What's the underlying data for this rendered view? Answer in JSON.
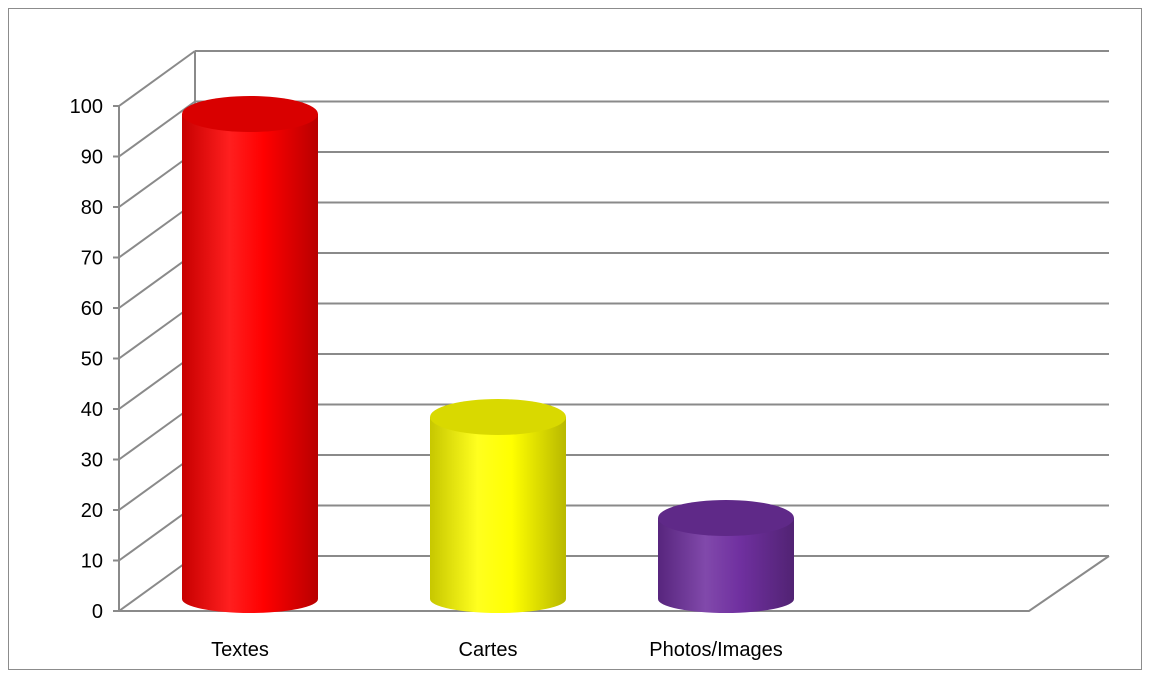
{
  "chart_data": {
    "type": "bar",
    "style": "3d-cylinder",
    "categories": [
      "Textes",
      "Cartes",
      "Photos/Images"
    ],
    "values": [
      100,
      40,
      20
    ],
    "colors": [
      "#ff0000",
      "#ffff00",
      "#7030a0"
    ],
    "ylim": [
      0,
      100
    ],
    "yticks": [
      "0",
      "10",
      "20",
      "30",
      "40",
      "50",
      "60",
      "70",
      "80",
      "90",
      "100"
    ],
    "grid": true,
    "title": "",
    "xlabel": "",
    "ylabel": ""
  }
}
